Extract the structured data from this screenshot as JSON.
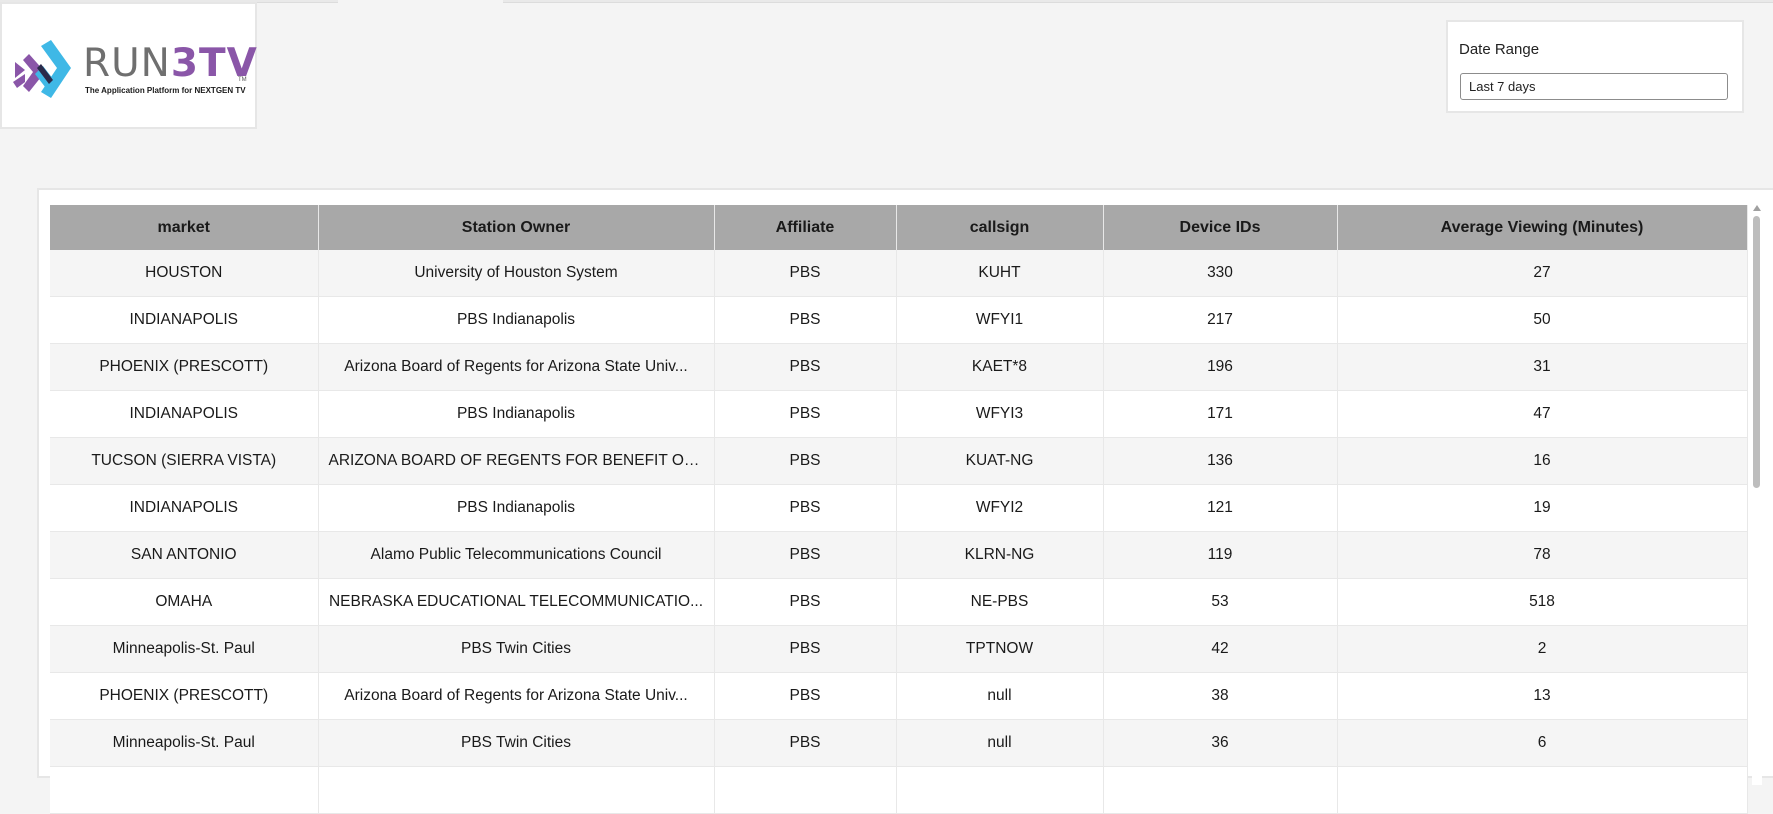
{
  "logo": {
    "wordmark_run": "RUN",
    "wordmark_3tv": "3TV",
    "trademark": "TM",
    "tagline": "The Application Platform for NEXTGEN TV",
    "brand_colors": {
      "purple": "#8a56a8",
      "cyan": "#3fb8e6",
      "gray": "#6f6f6f"
    }
  },
  "filters": {
    "date_range": {
      "label": "Date Range",
      "selected": "Last 7 days"
    }
  },
  "table": {
    "columns": [
      "market",
      "Station Owner",
      "Affiliate",
      "callsign",
      "Device IDs",
      "Average Viewing (Minutes)"
    ],
    "rows": [
      [
        "HOUSTON",
        "University of Houston System",
        "PBS",
        "KUHT",
        "330",
        "27"
      ],
      [
        "INDIANAPOLIS",
        "PBS Indianapolis",
        "PBS",
        "WFYI1",
        "217",
        "50"
      ],
      [
        "PHOENIX (PRESCOTT)",
        "Arizona Board of Regents for Arizona State Univ...",
        "PBS",
        "KAET*8",
        "196",
        "31"
      ],
      [
        "INDIANAPOLIS",
        "PBS Indianapolis",
        "PBS",
        "WFYI3",
        "171",
        "47"
      ],
      [
        "TUCSON (SIERRA VISTA)",
        "ARIZONA BOARD OF REGENTS FOR BENEFIT OF ...",
        "PBS",
        "KUAT-NG",
        "136",
        "16"
      ],
      [
        "INDIANAPOLIS",
        "PBS Indianapolis",
        "PBS",
        "WFYI2",
        "121",
        "19"
      ],
      [
        "SAN ANTONIO",
        "Alamo Public Telecommunications Council",
        "PBS",
        "KLRN-NG",
        "119",
        "78"
      ],
      [
        "OMAHA",
        "NEBRASKA EDUCATIONAL TELECOMMUNICATIO...",
        "PBS",
        "NE-PBS",
        "53",
        "518"
      ],
      [
        "Minneapolis-St. Paul",
        "PBS Twin Cities",
        "PBS",
        "TPTNOW",
        "42",
        "2"
      ],
      [
        "PHOENIX (PRESCOTT)",
        "Arizona Board of Regents for Arizona State Univ...",
        "PBS",
        "null",
        "38",
        "13"
      ],
      [
        "Minneapolis-St. Paul",
        "PBS Twin Cities",
        "PBS",
        "null",
        "36",
        "6"
      ],
      [
        "",
        "",
        "",
        "",
        "",
        ""
      ]
    ]
  }
}
